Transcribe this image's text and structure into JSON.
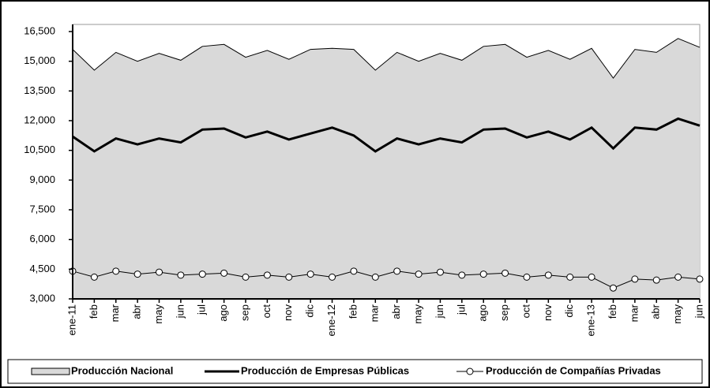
{
  "chart_data": {
    "type": "line",
    "categories": [
      "ene-11",
      "feb",
      "mar",
      "abr",
      "may",
      "jun",
      "jul",
      "ago",
      "sep",
      "oct",
      "nov",
      "dic",
      "ene-12",
      "feb",
      "mar",
      "abr",
      "may",
      "jun",
      "jul",
      "ago",
      "sep",
      "oct",
      "nov",
      "dic",
      "ene-13",
      "feb",
      "mar",
      "abr",
      "may",
      "jun"
    ],
    "series": [
      {
        "name": "Producción Nacional",
        "style": "area",
        "color": "#d9d9d9",
        "values": [
          15600,
          14550,
          15450,
          15000,
          15400,
          15050,
          15750,
          15850,
          15200,
          15550,
          15100,
          15600,
          15650,
          15600,
          14550,
          15450,
          15000,
          15400,
          15050,
          15750,
          15850,
          15200,
          15550,
          15100,
          15650,
          14150,
          15600,
          15450,
          16150,
          15700
        ]
      },
      {
        "name": "Producción de Empresas Públicas",
        "style": "line",
        "color": "#000000",
        "values": [
          11200,
          10450,
          11100,
          10800,
          11100,
          10900,
          11550,
          11600,
          11150,
          11450,
          11050,
          11350,
          11650,
          11250,
          10450,
          11100,
          10800,
          11100,
          10900,
          11550,
          11600,
          11150,
          11450,
          11050,
          11650,
          10600,
          11650,
          11550,
          12100,
          11750
        ]
      },
      {
        "name": "Producción de Compañías Privadas",
        "style": "marker",
        "color": "#000000",
        "values": [
          4400,
          4100,
          4400,
          4250,
          4350,
          4200,
          4250,
          4300,
          4100,
          4200,
          4100,
          4250,
          4100,
          4400,
          4100,
          4400,
          4250,
          4350,
          4200,
          4250,
          4300,
          4100,
          4200,
          4100,
          4100,
          3550,
          4000,
          3950,
          4100,
          4000
        ]
      }
    ],
    "ylim": [
      3000,
      16500
    ],
    "yticks": [
      {
        "value": 3000,
        "label": "3,000"
      },
      {
        "value": 4500,
        "label": "4,500"
      },
      {
        "value": 6000,
        "label": "6,000"
      },
      {
        "value": 7500,
        "label": "7,500"
      },
      {
        "value": 9000,
        "label": "9,000"
      },
      {
        "value": 10500,
        "label": "10,500"
      },
      {
        "value": 12000,
        "label": "12,000"
      },
      {
        "value": 13500,
        "label": "13,500"
      },
      {
        "value": 15000,
        "label": "15,000"
      },
      {
        "value": 16500,
        "label": "16,500"
      }
    ],
    "legend": "bottom"
  }
}
